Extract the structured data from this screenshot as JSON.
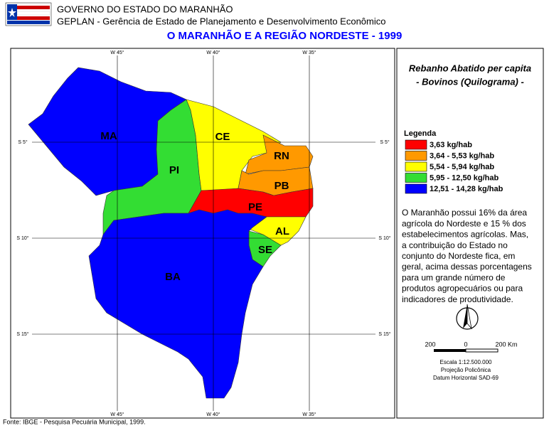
{
  "header": {
    "org": "GOVERNO DO ESTADO DO MARANHÃO",
    "dept": "GEPLAN - Gerência de Estado de Planejamento e Desenvolvimento Econômico",
    "title": "O MARANHÃO E A REGIÃO NORDESTE - 1999"
  },
  "map": {
    "lon_labels": [
      "W 45°",
      "W 40°",
      "W 35°"
    ],
    "lat_labels": [
      "S 5°",
      "S 10°",
      "S 15°"
    ],
    "states": [
      {
        "label": "MA",
        "color": "#0000ff"
      },
      {
        "label": "PI",
        "color": "#33dd33"
      },
      {
        "label": "CE",
        "color": "#ffff00"
      },
      {
        "label": "RN",
        "color": "#ff9900"
      },
      {
        "label": "PB",
        "color": "#ff9900"
      },
      {
        "label": "PE",
        "color": "#ff0000"
      },
      {
        "label": "AL",
        "color": "#ffff00"
      },
      {
        "label": "SE",
        "color": "#33dd33"
      },
      {
        "label": "BA",
        "color": "#0000ff"
      }
    ]
  },
  "panel": {
    "title_lines": [
      "Rebanho Abatido per capita",
      "- Bovinos (Quilograma) -"
    ],
    "legend_title": "Legenda",
    "legend": [
      {
        "label": "3,63 kg/hab",
        "color": "#ff0000"
      },
      {
        "label": "3,64 - 5,53 kg/hab",
        "color": "#ff9900"
      },
      {
        "label": "5,54 - 5,94 kg/hab",
        "color": "#ffff00"
      },
      {
        "label": "5,95 - 12,50 kg/hab",
        "color": "#33dd33"
      },
      {
        "label": "12,51 - 14,28 kg/hab",
        "color": "#0000ff"
      }
    ],
    "note_lines": [
      "O Maranhão possui 16% da área",
      "agrícola do Nordeste e 15 % dos",
      "estabelecimentos agrícolas. Mas,",
      "a contribuição do Estado no",
      "conjunto do Nordeste fica, em",
      "geral, acima dessas porcentagens",
      "para um grande número de",
      "produtos agropecuários ou para",
      "indicadores de produtividade."
    ],
    "scale_labels": [
      "200",
      "0",
      "200 Km"
    ],
    "scale_lines": [
      "Escala 1:12.500.000",
      "Projeção Policônica",
      "Datum Horizontal SAD-69"
    ]
  },
  "footer": "Fonte: IBGE - Pesquisa Pecuária Municipal, 1999."
}
